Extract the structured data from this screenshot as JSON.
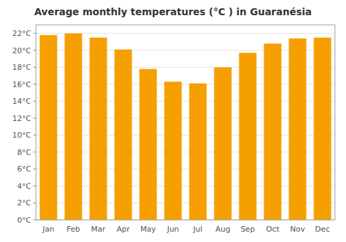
{
  "chart_data": {
    "type": "bar",
    "title": "Average monthly temperatures (°C ) in Guaranésia",
    "categories": [
      "Jan",
      "Feb",
      "Mar",
      "Apr",
      "May",
      "Jun",
      "Jul",
      "Aug",
      "Sep",
      "Oct",
      "Nov",
      "Dec"
    ],
    "values": [
      21.8,
      22.0,
      21.5,
      20.1,
      17.8,
      16.3,
      16.1,
      18.0,
      19.7,
      20.8,
      21.4,
      21.5
    ],
    "color": "#F5A000",
    "ylim": [
      0,
      23
    ],
    "yticks": [
      {
        "value": 0,
        "label": "0°C"
      },
      {
        "value": 2,
        "label": "2°C"
      },
      {
        "value": 4,
        "label": "4°C"
      },
      {
        "value": 6,
        "label": "6°C"
      },
      {
        "value": 8,
        "label": "8°C"
      },
      {
        "value": 10,
        "label": "10°C"
      },
      {
        "value": 12,
        "label": "12°C"
      },
      {
        "value": 14,
        "label": "14°C"
      },
      {
        "value": 16,
        "label": "16°C"
      },
      {
        "value": 18,
        "label": "18°C"
      },
      {
        "value": 20,
        "label": "20°C"
      },
      {
        "value": 22,
        "label": "22°C"
      }
    ],
    "grid": true
  }
}
